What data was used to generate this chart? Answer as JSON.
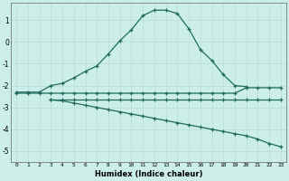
{
  "xlabel": "Humidex (Indice chaleur)",
  "bg_color": "#cceee8",
  "grid_color": "#b8ddd6",
  "line_color": "#1e6b5e",
  "xlim": [
    -0.5,
    23.5
  ],
  "ylim": [
    -5.5,
    1.8
  ],
  "yticks": [
    -5,
    -4,
    -3,
    -2,
    -1,
    0,
    1
  ],
  "xticks": [
    0,
    1,
    2,
    3,
    4,
    5,
    6,
    7,
    8,
    9,
    10,
    11,
    12,
    13,
    14,
    15,
    16,
    17,
    18,
    19,
    20,
    21,
    22,
    23
  ],
  "line1_x": [
    0,
    1,
    2,
    3,
    4,
    5,
    6,
    7,
    8,
    9,
    10,
    11,
    12,
    13,
    14,
    15,
    16,
    17,
    18,
    19,
    20
  ],
  "line1_y": [
    -2.3,
    -2.3,
    -2.3,
    -2.0,
    -1.9,
    -1.65,
    -1.35,
    -1.1,
    -0.55,
    0.05,
    0.55,
    1.2,
    1.45,
    1.45,
    1.3,
    0.6,
    -0.35,
    -0.85,
    -1.5,
    -2.0,
    -2.05
  ],
  "line2_x": [
    0,
    1,
    2,
    3,
    4,
    5,
    6,
    7,
    8,
    9,
    10,
    11,
    12,
    13,
    14,
    15,
    16,
    17,
    18,
    19,
    20,
    21,
    22,
    23
  ],
  "line2_y": [
    -2.35,
    -2.35,
    -2.35,
    -2.35,
    -2.35,
    -2.35,
    -2.35,
    -2.35,
    -2.35,
    -2.35,
    -2.35,
    -2.35,
    -2.35,
    -2.35,
    -2.35,
    -2.35,
    -2.35,
    -2.35,
    -2.35,
    -2.35,
    -2.1,
    -2.1,
    -2.1,
    -2.1
  ],
  "line3_x": [
    3,
    4,
    5,
    6,
    7,
    8,
    9,
    10,
    11,
    12,
    13,
    14,
    15,
    16,
    17,
    18,
    19,
    20,
    21,
    22,
    23
  ],
  "line3_y": [
    -2.65,
    -2.65,
    -2.65,
    -2.65,
    -2.65,
    -2.65,
    -2.65,
    -2.65,
    -2.65,
    -2.65,
    -2.65,
    -2.65,
    -2.65,
    -2.65,
    -2.65,
    -2.65,
    -2.65,
    -2.65,
    -2.65,
    -2.65,
    -2.65
  ],
  "line4_x": [
    3,
    4,
    5,
    6,
    7,
    8,
    9,
    10,
    11,
    12,
    13,
    14,
    15,
    16,
    17,
    18,
    19,
    20,
    21,
    22,
    23
  ],
  "line4_y": [
    -2.65,
    -2.7,
    -2.8,
    -2.9,
    -3.0,
    -3.1,
    -3.2,
    -3.3,
    -3.4,
    -3.5,
    -3.6,
    -3.7,
    -3.8,
    -3.9,
    -4.0,
    -4.1,
    -4.2,
    -4.3,
    -4.45,
    -4.65,
    -4.8
  ]
}
